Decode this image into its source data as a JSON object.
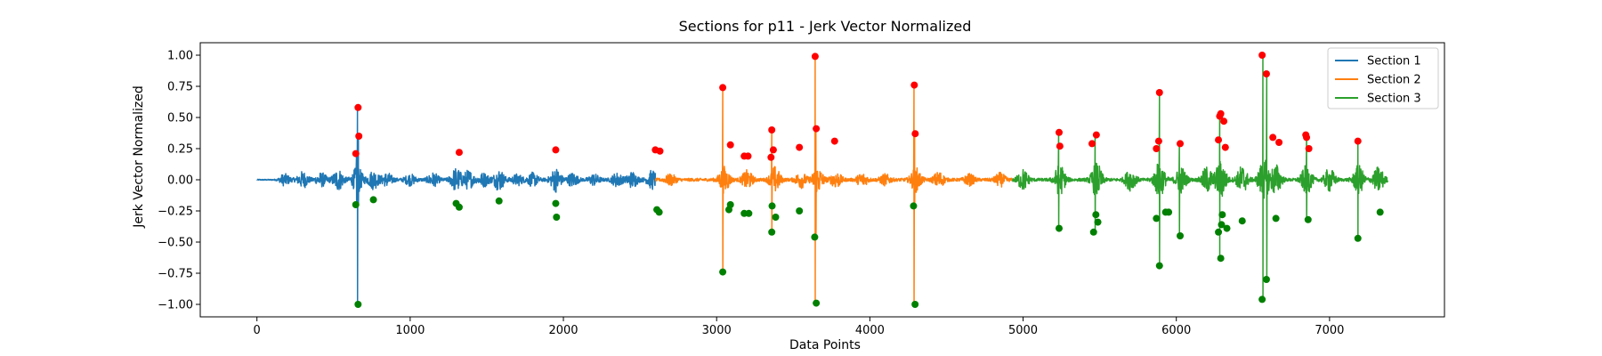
{
  "chart_data": {
    "type": "line",
    "title": "Sections for p11 - Jerk Vector Normalized",
    "xlabel": "Data Points",
    "ylabel": "Jerk Vector Normalized",
    "xlim": [
      -370,
      7750
    ],
    "ylim": [
      -1.1,
      1.1
    ],
    "x_ticks": [
      0,
      1000,
      2000,
      3000,
      4000,
      5000,
      6000,
      7000
    ],
    "y_ticks": [
      -1.0,
      -0.75,
      -0.5,
      -0.25,
      0.0,
      0.25,
      0.5,
      0.75,
      1.0
    ],
    "x_tick_labels": [
      "0",
      "1000",
      "2000",
      "3000",
      "4000",
      "5000",
      "6000",
      "7000"
    ],
    "y_tick_labels": [
      "−1.00",
      "−0.75",
      "−0.50",
      "−0.25",
      "0.00",
      "0.25",
      "0.50",
      "0.75",
      "1.00"
    ],
    "grid": false,
    "legend_position": "top-right",
    "series": [
      {
        "name": "Section 1",
        "color": "#1f77b4",
        "x_range": [
          0,
          2600
        ],
        "bursts": [
          [
            180,
            0.04
          ],
          [
            300,
            0.06
          ],
          [
            420,
            0.05
          ],
          [
            530,
            0.08
          ],
          [
            655,
            0.1
          ],
          [
            760,
            0.07
          ],
          [
            850,
            0.05
          ],
          [
            1000,
            0.04
          ],
          [
            1150,
            0.05
          ],
          [
            1300,
            0.09
          ],
          [
            1380,
            0.07
          ],
          [
            1480,
            0.05
          ],
          [
            1580,
            0.08
          ],
          [
            1700,
            0.04
          ],
          [
            1800,
            0.05
          ],
          [
            1950,
            0.09
          ],
          [
            2060,
            0.05
          ],
          [
            2200,
            0.04
          ],
          [
            2350,
            0.05
          ],
          [
            2450,
            0.06
          ],
          [
            2580,
            0.07
          ]
        ],
        "spikes": [
          [
            650,
            -0.2,
            0.21
          ],
          [
            656,
            -1.0,
            0.58
          ],
          [
            662,
            -0.2,
            0.35
          ]
        ]
      },
      {
        "name": "Section 2",
        "color": "#ff7f0e",
        "x_range": [
          2600,
          4930
        ],
        "bursts": [
          [
            2700,
            0.04
          ],
          [
            3050,
            0.1
          ],
          [
            3200,
            0.07
          ],
          [
            3380,
            0.1
          ],
          [
            3550,
            0.06
          ],
          [
            3660,
            0.1
          ],
          [
            3780,
            0.06
          ],
          [
            3950,
            0.05
          ],
          [
            4100,
            0.04
          ],
          [
            4300,
            0.09
          ],
          [
            4450,
            0.06
          ],
          [
            4650,
            0.04
          ],
          [
            4850,
            0.05
          ]
        ],
        "spikes": [
          [
            3040,
            -0.74,
            0.74
          ],
          [
            3643,
            -0.99,
            0.99
          ],
          [
            3648,
            -0.46,
            0.41
          ],
          [
            4288,
            -1.0,
            0.76
          ],
          [
            4292,
            -0.21,
            0.37
          ],
          [
            3360,
            -0.42,
            0.4
          ]
        ]
      },
      {
        "name": "Section 3",
        "color": "#2ca02c",
        "x_range": [
          4930,
          7380
        ],
        "bursts": [
          [
            5000,
            0.08
          ],
          [
            5240,
            0.12
          ],
          [
            5480,
            0.13
          ],
          [
            5700,
            0.08
          ],
          [
            5890,
            0.14
          ],
          [
            6030,
            0.1
          ],
          [
            6200,
            0.1
          ],
          [
            6290,
            0.15
          ],
          [
            6430,
            0.11
          ],
          [
            6570,
            0.16
          ],
          [
            6650,
            0.12
          ],
          [
            6850,
            0.11
          ],
          [
            7000,
            0.09
          ],
          [
            7190,
            0.11
          ],
          [
            7320,
            0.1
          ]
        ],
        "spikes": [
          [
            5890,
            -0.69,
            0.7
          ],
          [
            6283,
            -0.63,
            0.53
          ],
          [
            6565,
            -0.96,
            1.0
          ],
          [
            6590,
            -0.8,
            0.85
          ],
          [
            5232,
            -0.39,
            0.38
          ],
          [
            5470,
            -0.42,
            0.36
          ],
          [
            6850,
            -0.32,
            0.36
          ],
          [
            7185,
            -0.47,
            0.31
          ],
          [
            6020,
            -0.45,
            0.29
          ]
        ]
      }
    ],
    "markers": {
      "max_color": "#ff0000",
      "min_color": "#008000",
      "max_points": [
        [
          645,
          0.21
        ],
        [
          660,
          0.58
        ],
        [
          665,
          0.35
        ],
        [
          1320,
          0.22
        ],
        [
          1950,
          0.24
        ],
        [
          2600,
          0.24
        ],
        [
          2630,
          0.23
        ],
        [
          3040,
          0.74
        ],
        [
          3090,
          0.28
        ],
        [
          3180,
          0.19
        ],
        [
          3205,
          0.19
        ],
        [
          3355,
          0.18
        ],
        [
          3360,
          0.4
        ],
        [
          3370,
          0.24
        ],
        [
          3540,
          0.26
        ],
        [
          3643,
          0.99
        ],
        [
          3650,
          0.41
        ],
        [
          3770,
          0.31
        ],
        [
          4290,
          0.76
        ],
        [
          4296,
          0.37
        ],
        [
          5235,
          0.38
        ],
        [
          5240,
          0.27
        ],
        [
          5450,
          0.29
        ],
        [
          5478,
          0.36
        ],
        [
          5870,
          0.25
        ],
        [
          5885,
          0.31
        ],
        [
          5890,
          0.7
        ],
        [
          6025,
          0.29
        ],
        [
          6275,
          0.32
        ],
        [
          6283,
          0.51
        ],
        [
          6290,
          0.53
        ],
        [
          6310,
          0.47
        ],
        [
          6320,
          0.26
        ],
        [
          6560,
          1.0
        ],
        [
          6588,
          0.85
        ],
        [
          6630,
          0.34
        ],
        [
          6670,
          0.3
        ],
        [
          6845,
          0.36
        ],
        [
          6850,
          0.34
        ],
        [
          6865,
          0.25
        ],
        [
          7185,
          0.31
        ]
      ],
      "min_points": [
        [
          645,
          -0.2
        ],
        [
          660,
          -1.0
        ],
        [
          760,
          -0.16
        ],
        [
          1300,
          -0.19
        ],
        [
          1320,
          -0.22
        ],
        [
          1580,
          -0.17
        ],
        [
          1950,
          -0.19
        ],
        [
          1955,
          -0.3
        ],
        [
          2610,
          -0.24
        ],
        [
          2625,
          -0.26
        ],
        [
          3040,
          -0.74
        ],
        [
          3080,
          -0.24
        ],
        [
          3090,
          -0.2
        ],
        [
          3180,
          -0.27
        ],
        [
          3210,
          -0.27
        ],
        [
          3360,
          -0.42
        ],
        [
          3362,
          -0.21
        ],
        [
          3385,
          -0.3
        ],
        [
          3540,
          -0.25
        ],
        [
          3640,
          -0.46
        ],
        [
          3650,
          -0.99
        ],
        [
          4285,
          -0.21
        ],
        [
          4295,
          -1.0
        ],
        [
          5235,
          -0.39
        ],
        [
          5460,
          -0.42
        ],
        [
          5475,
          -0.28
        ],
        [
          5488,
          -0.34
        ],
        [
          5870,
          -0.31
        ],
        [
          5890,
          -0.69
        ],
        [
          5930,
          -0.26
        ],
        [
          5950,
          -0.26
        ],
        [
          6025,
          -0.45
        ],
        [
          6275,
          -0.42
        ],
        [
          6290,
          -0.63
        ],
        [
          6295,
          -0.36
        ],
        [
          6300,
          -0.28
        ],
        [
          6330,
          -0.39
        ],
        [
          6430,
          -0.33
        ],
        [
          6560,
          -0.96
        ],
        [
          6588,
          -0.8
        ],
        [
          6650,
          -0.31
        ],
        [
          6860,
          -0.32
        ],
        [
          7185,
          -0.47
        ],
        [
          7330,
          -0.26
        ]
      ]
    }
  }
}
